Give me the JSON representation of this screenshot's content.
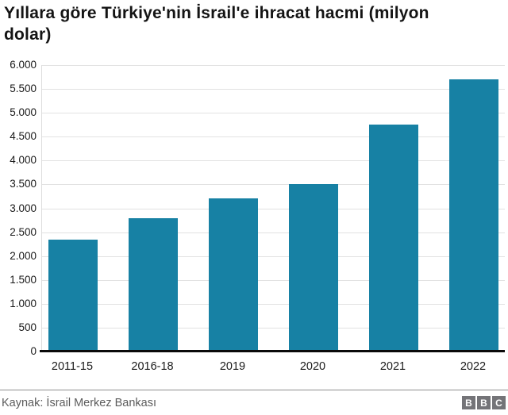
{
  "header": {
    "title_line1": "Yıllara göre Türkiye'nin İsrail'e ihracat hacmi (milyon",
    "title_line2": "dolar)"
  },
  "chart_data": {
    "type": "bar",
    "title": "Yıllara göre Türkiye'nin İsrail'e ihracat hacmi (milyon dolar)",
    "categories": [
      "2011-15",
      "2016-18",
      "2019",
      "2020",
      "2021",
      "2022"
    ],
    "values": [
      2350,
      2800,
      3200,
      3500,
      4750,
      5700
    ],
    "xlabel": "",
    "ylabel": "",
    "ylim": [
      0,
      6000
    ],
    "ytick_step": 500,
    "ytick_labels": [
      "0",
      "500",
      "1.000",
      "1.500",
      "2.000",
      "2.500",
      "3.000",
      "3.500",
      "4.000",
      "4.500",
      "5.000",
      "5.500",
      "6.000"
    ],
    "grid": true,
    "legend": false,
    "bar_color": "#1781a4"
  },
  "footer": {
    "source": "Kaynak: İsrail Merkez Bankası",
    "logo_letters": [
      "B",
      "B",
      "C"
    ]
  },
  "colors": {
    "bar": "#1781a4",
    "grid": "#e2e2e2",
    "axis": "#0a0a0a",
    "text": "#1a1a1a",
    "muted_text": "#5c5c5c",
    "divider": "#8f8f8f",
    "logo_bg": "#747478"
  }
}
